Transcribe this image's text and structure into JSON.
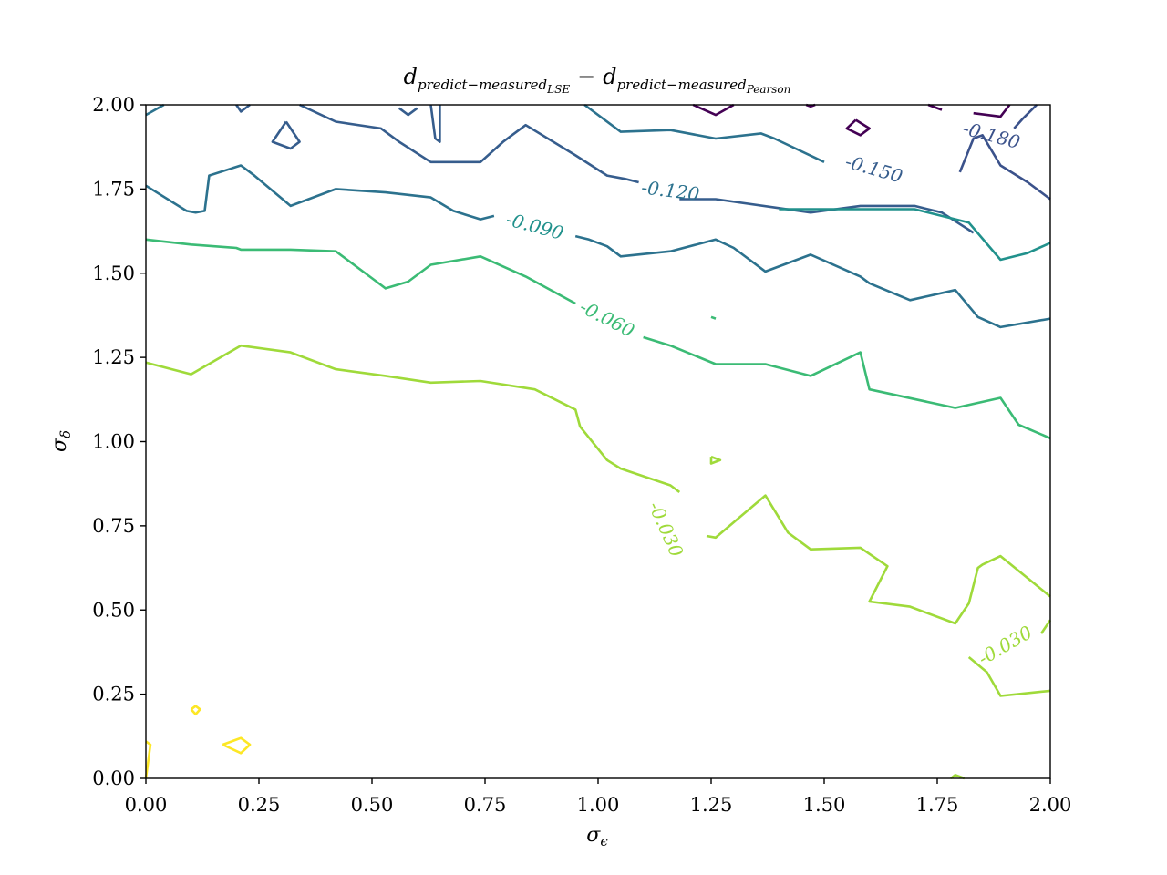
{
  "chart_data": {
    "type": "contour",
    "title": {
      "main": "d",
      "sub1": "predict−measured",
      "subsub1": "LSE",
      "minus": "−",
      "sub2": "predict−measured",
      "subsub2": "Pearson"
    },
    "xlabel": {
      "base": "σ",
      "sub": "ϵ"
    },
    "ylabel": {
      "base": "σ",
      "sub": "δ"
    },
    "xlim": [
      0,
      2
    ],
    "ylim": [
      0,
      2
    ],
    "xticks": [
      "0.00",
      "0.25",
      "0.50",
      "0.75",
      "1.00",
      "1.25",
      "1.50",
      "1.75",
      "2.00"
    ],
    "yticks": [
      "0.00",
      "0.25",
      "0.50",
      "0.75",
      "1.00",
      "1.25",
      "1.50",
      "1.75",
      "2.00"
    ],
    "colormap": "viridis",
    "levels": [
      {
        "value": -0.21,
        "color": "#440154",
        "label": "",
        "paths": [
          [
            [
              1.21,
              2.0
            ],
            [
              1.26,
              1.97
            ],
            [
              1.3,
              2.0
            ]
          ],
          [
            [
              1.46,
              2.0
            ],
            [
              1.47,
              1.995
            ],
            [
              1.48,
              2.0
            ]
          ],
          [
            [
              1.73,
              2.0
            ],
            [
              1.76,
              1.985
            ]
          ],
          [
            [
              1.83,
              1.975
            ],
            [
              1.89,
              1.965
            ],
            [
              1.91,
              2.0
            ]
          ],
          [
            [
              1.57,
              1.955
            ],
            [
              1.6,
              1.93
            ],
            [
              1.58,
              1.91
            ],
            [
              1.55,
              1.93
            ],
            [
              1.57,
              1.955
            ]
          ]
        ]
      },
      {
        "value": -0.18,
        "color": "#3b528b",
        "label": "-0.180",
        "paths": [
          [
            [
              1.97,
              2.0
            ],
            [
              1.94,
              1.96
            ],
            [
              1.92,
              1.93
            ]
          ],
          [
            [
              1.8,
              1.8
            ],
            [
              1.83,
              1.9
            ],
            [
              1.85,
              1.91
            ],
            [
              1.89,
              1.82
            ],
            [
              1.95,
              1.77
            ],
            [
              2.0,
              1.72
            ]
          ]
        ]
      },
      {
        "value": -0.15,
        "color": "#365d8d",
        "label": "-0.150",
        "paths": [
          [
            [
              0.34,
              2.0
            ],
            [
              0.42,
              1.95
            ],
            [
              0.52,
              1.93
            ],
            [
              0.56,
              1.89
            ],
            [
              0.63,
              1.83
            ],
            [
              0.74,
              1.83
            ],
            [
              0.79,
              1.89
            ],
            [
              0.84,
              1.94
            ],
            [
              0.95,
              1.85
            ],
            [
              1.02,
              1.79
            ],
            [
              1.06,
              1.78
            ],
            [
              1.09,
              1.77
            ]
          ],
          [
            [
              0.63,
              2.0
            ],
            [
              0.64,
              1.9
            ],
            [
              0.65,
              1.89
            ],
            [
              0.65,
              2.0
            ]
          ],
          [
            [
              1.18,
              1.72
            ],
            [
              1.26,
              1.72
            ],
            [
              1.47,
              1.68
            ],
            [
              1.58,
              1.7
            ],
            [
              1.7,
              1.7
            ],
            [
              1.76,
              1.68
            ],
            [
              1.83,
              1.62
            ]
          ],
          [
            [
              0.2,
              2.0
            ],
            [
              0.21,
              1.98
            ],
            [
              0.23,
              2.0
            ]
          ],
          [
            [
              0.31,
              1.95
            ],
            [
              0.34,
              1.89
            ],
            [
              0.32,
              1.87
            ],
            [
              0.28,
              1.89
            ],
            [
              0.31,
              1.95
            ]
          ],
          [
            [
              0.56,
              1.99
            ],
            [
              0.58,
              1.97
            ],
            [
              0.6,
              1.99
            ]
          ]
        ]
      },
      {
        "value": -0.12,
        "color": "#2c728e",
        "label": "-0.120",
        "paths": [
          [
            [
              0.0,
              1.97
            ],
            [
              0.04,
              2.0
            ]
          ],
          [
            [
              0.97,
              2.0
            ],
            [
              1.05,
              1.92
            ],
            [
              1.16,
              1.925
            ],
            [
              1.26,
              1.9
            ],
            [
              1.36,
              1.915
            ],
            [
              1.39,
              1.9
            ],
            [
              1.5,
              1.83
            ]
          ],
          [
            [
              0.0,
              1.76
            ],
            [
              0.09,
              1.685
            ],
            [
              0.11,
              1.68
            ],
            [
              0.13,
              1.685
            ],
            [
              0.14,
              1.79
            ],
            [
              0.21,
              1.82
            ],
            [
              0.24,
              1.79
            ],
            [
              0.32,
              1.7
            ],
            [
              0.42,
              1.75
            ],
            [
              0.53,
              1.74
            ],
            [
              0.63,
              1.725
            ],
            [
              0.68,
              1.685
            ],
            [
              0.74,
              1.66
            ],
            [
              0.77,
              1.67
            ]
          ],
          [
            [
              0.95,
              1.61
            ],
            [
              0.98,
              1.6
            ],
            [
              1.02,
              1.58
            ],
            [
              1.05,
              1.55
            ],
            [
              1.16,
              1.565
            ],
            [
              1.26,
              1.6
            ],
            [
              1.3,
              1.575
            ],
            [
              1.37,
              1.505
            ],
            [
              1.47,
              1.555
            ],
            [
              1.58,
              1.49
            ],
            [
              1.6,
              1.47
            ],
            [
              1.69,
              1.42
            ],
            [
              1.79,
              1.45
            ],
            [
              1.84,
              1.37
            ],
            [
              1.89,
              1.34
            ],
            [
              2.0,
              1.365
            ]
          ]
        ]
      },
      {
        "value": -0.09,
        "color": "#21918c",
        "label": "-0.090",
        "paths": [
          [
            [
              1.4,
              1.69
            ],
            [
              1.55,
              1.69
            ],
            [
              1.7,
              1.69
            ],
            [
              1.82,
              1.65
            ],
            [
              1.89,
              1.54
            ],
            [
              1.95,
              1.56
            ],
            [
              2.0,
              1.59
            ]
          ]
        ]
      },
      {
        "value": -0.06,
        "color": "#3bbb75",
        "label": "-0.060",
        "paths": [
          [
            [
              0.0,
              1.6
            ],
            [
              0.1,
              1.585
            ],
            [
              0.2,
              1.575
            ],
            [
              0.21,
              1.57
            ],
            [
              0.32,
              1.57
            ],
            [
              0.42,
              1.565
            ],
            [
              0.51,
              1.475
            ],
            [
              0.53,
              1.455
            ],
            [
              0.58,
              1.475
            ],
            [
              0.63,
              1.525
            ],
            [
              0.74,
              1.55
            ],
            [
              0.84,
              1.49
            ],
            [
              0.95,
              1.41
            ]
          ],
          [
            [
              1.1,
              1.31
            ],
            [
              1.16,
              1.285
            ],
            [
              1.26,
              1.23
            ],
            [
              1.37,
              1.23
            ],
            [
              1.47,
              1.195
            ],
            [
              1.58,
              1.265
            ],
            [
              1.6,
              1.155
            ],
            [
              1.79,
              1.1
            ],
            [
              1.89,
              1.13
            ],
            [
              1.93,
              1.05
            ],
            [
              2.0,
              1.01
            ]
          ],
          [
            [
              1.25,
              1.37
            ],
            [
              1.26,
              1.365
            ]
          ]
        ]
      },
      {
        "value": -0.03,
        "color": "#9fda3a",
        "label": "-0.030",
        "paths": [
          [
            [
              0.0,
              1.235
            ],
            [
              0.1,
              1.2
            ],
            [
              0.21,
              1.285
            ],
            [
              0.32,
              1.265
            ],
            [
              0.42,
              1.215
            ],
            [
              0.53,
              1.195
            ],
            [
              0.63,
              1.175
            ],
            [
              0.74,
              1.18
            ],
            [
              0.86,
              1.155
            ],
            [
              0.95,
              1.095
            ],
            [
              0.96,
              1.045
            ],
            [
              1.02,
              0.945
            ],
            [
              1.05,
              0.92
            ],
            [
              1.16,
              0.87
            ],
            [
              1.18,
              0.85
            ]
          ],
          [
            [
              1.24,
              0.72
            ],
            [
              1.26,
              0.715
            ],
            [
              1.37,
              0.84
            ],
            [
              1.42,
              0.73
            ],
            [
              1.47,
              0.68
            ],
            [
              1.58,
              0.685
            ],
            [
              1.64,
              0.63
            ],
            [
              1.6,
              0.525
            ],
            [
              1.69,
              0.51
            ],
            [
              1.79,
              0.46
            ],
            [
              1.82,
              0.52
            ],
            [
              1.84,
              0.625
            ],
            [
              1.85,
              0.635
            ],
            [
              1.89,
              0.66
            ],
            [
              2.0,
              0.54
            ]
          ],
          [
            [
              1.82,
              0.36
            ],
            [
              1.86,
              0.315
            ],
            [
              1.89,
              0.245
            ],
            [
              2.0,
              0.26
            ]
          ],
          [
            [
              1.98,
              0.43
            ],
            [
              2.0,
              0.47
            ]
          ],
          [
            [
              1.78,
              0.0
            ],
            [
              1.79,
              0.01
            ],
            [
              1.81,
              0.0
            ]
          ],
          [
            [
              1.25,
              0.955
            ],
            [
              1.27,
              0.945
            ],
            [
              1.25,
              0.935
            ],
            [
              1.25,
              0.955
            ]
          ]
        ]
      },
      {
        "value": 0.0,
        "color": "#fde725",
        "label": "",
        "paths": [
          [
            [
              0.0,
              0.0
            ],
            [
              0.01,
              0.1
            ],
            [
              0.0,
              0.11
            ]
          ],
          [
            [
              0.17,
              0.1
            ],
            [
              0.21,
              0.12
            ],
            [
              0.23,
              0.1
            ],
            [
              0.21,
              0.075
            ],
            [
              0.17,
              0.1
            ]
          ],
          [
            [
              0.1,
              0.205
            ],
            [
              0.11,
              0.215
            ],
            [
              0.12,
              0.205
            ],
            [
              0.11,
              0.19
            ],
            [
              0.1,
              0.205
            ]
          ]
        ]
      }
    ],
    "contour_labels": [
      {
        "text": "-0.180",
        "x": 1.87,
        "y": 1.91,
        "angle": 15
      },
      {
        "text": "-0.150",
        "x": 1.61,
        "y": 1.81,
        "angle": 16
      },
      {
        "text": "-0.120",
        "x": 1.16,
        "y": 1.745,
        "angle": 7
      },
      {
        "text": "-0.090",
        "x": 0.86,
        "y": 1.64,
        "angle": 15
      },
      {
        "text": "-0.060",
        "x": 1.02,
        "y": 1.365,
        "angle": 27
      },
      {
        "text": "-0.030",
        "x": 1.15,
        "y": 0.74,
        "angle": 66
      },
      {
        "text": "-0.030",
        "x": 1.9,
        "y": 0.395,
        "angle": -30
      }
    ]
  }
}
